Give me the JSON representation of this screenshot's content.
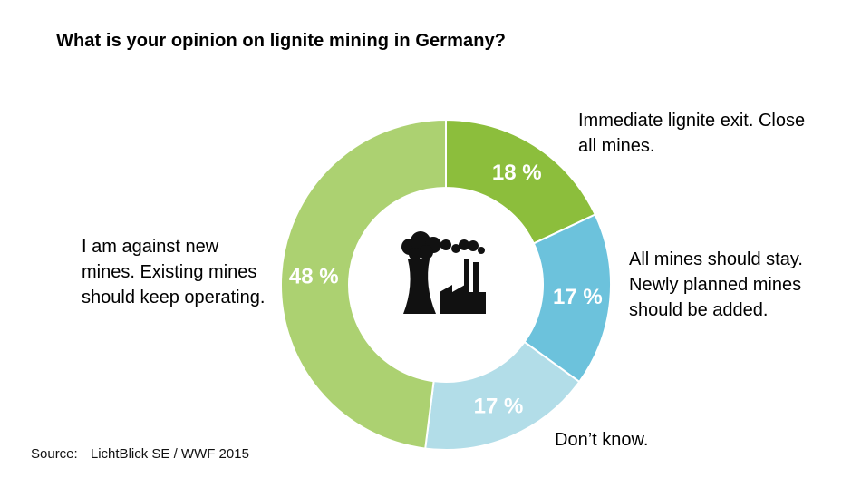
{
  "title": "What is your opinion on lignite mining in Germany?",
  "source": {
    "label": "Source:",
    "text": "LichtBlick SE / WWF 2015"
  },
  "center_icon": "coal-power-plant-icon",
  "chart_data": {
    "type": "pie",
    "variant": "donut",
    "title": "What is your opinion on lignite mining in Germany?",
    "slices": [
      {
        "label": "Immediate lignite exit. Close all mines.",
        "value": 18,
        "value_label": "18 %",
        "color": "#8cbe3c"
      },
      {
        "label": "All mines should stay. Newly planned mines should be added.",
        "value": 17,
        "value_label": "17 %",
        "color": "#6cc2dc"
      },
      {
        "label": "Don’t know.",
        "value": 17,
        "value_label": "17 %",
        "color": "#b2dde8"
      },
      {
        "label": "I am against new mines. Existing mines should keep operating.",
        "value": 48,
        "value_label": "48 %",
        "color": "#acd171"
      }
    ],
    "legend": "none",
    "slice_labels_placement": "outside"
  }
}
